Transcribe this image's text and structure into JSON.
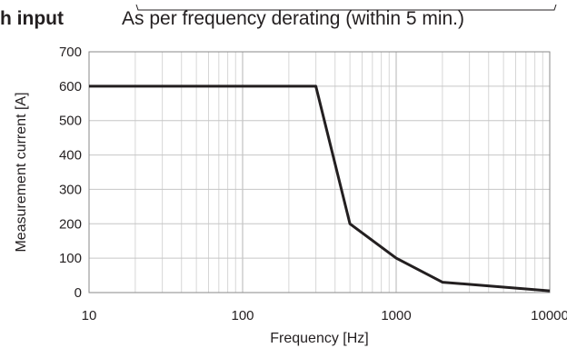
{
  "header": {
    "label": "h input",
    "text": "As per frequency derating (within 5 min.)"
  },
  "chart_data": {
    "type": "line",
    "title": "",
    "xlabel": "Frequency [Hz]",
    "ylabel": "Measurement current [A]",
    "x_scale": "log",
    "xlim": [
      10,
      10000
    ],
    "ylim": [
      0,
      700
    ],
    "x_ticks": [
      10,
      100,
      1000,
      10000
    ],
    "x_tick_labels": [
      "10",
      "100",
      "1000",
      "10000"
    ],
    "y_ticks": [
      0,
      100,
      200,
      300,
      400,
      500,
      600,
      700
    ],
    "y_tick_labels": [
      "0",
      "100",
      "200",
      "300",
      "400",
      "500",
      "600",
      "700"
    ],
    "grid": true,
    "legend": "none",
    "series": [
      {
        "x": [
          10,
          300,
          500,
          1000,
          2000,
          10000
        ],
        "y": [
          600,
          600,
          200,
          100,
          30,
          5
        ],
        "color": "#231f20"
      }
    ]
  }
}
